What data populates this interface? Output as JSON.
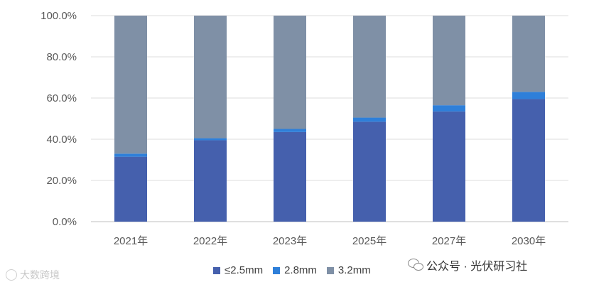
{
  "chart_data": {
    "type": "bar",
    "stacked": true,
    "categories": [
      "2021年",
      "2022年",
      "2023年",
      "2025年",
      "2027年",
      "2030年"
    ],
    "series": [
      {
        "name": "≤2.5mm",
        "color": "#4560ad",
        "values": [
          31.5,
          39.5,
          43.5,
          48.5,
          53.5,
          59.5
        ]
      },
      {
        "name": "2.8mm",
        "color": "#2e7fd9",
        "values": [
          1.5,
          1.0,
          1.5,
          2.0,
          3.0,
          3.5
        ]
      },
      {
        "name": "3.2mm",
        "color": "#7f90a6",
        "values": [
          67.0,
          59.5,
          55.0,
          49.5,
          43.5,
          37.0
        ]
      }
    ],
    "yticks": [
      "0.0%",
      "20.0%",
      "40.0%",
      "60.0%",
      "80.0%",
      "100.0%"
    ],
    "ylim": [
      0,
      100
    ],
    "grid": true,
    "legend_position": "bottom"
  },
  "watermarks": {
    "right_text": "公众号 · 光伏研习社",
    "left_text": "大数跨境"
  }
}
